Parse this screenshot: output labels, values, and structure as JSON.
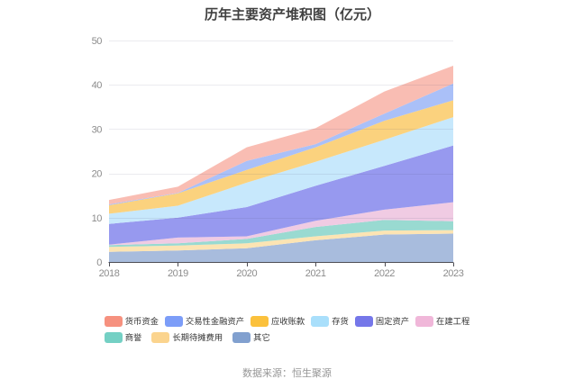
{
  "title": "历年主要资产堆积图（亿元）",
  "source_note": "数据来源：恒生聚源",
  "chart_data": {
    "type": "area",
    "stacked": true,
    "title": "历年主要资产堆积图（亿元）",
    "x": [
      "2018",
      "2019",
      "2020",
      "2021",
      "2022",
      "2023"
    ],
    "xlabel": "",
    "ylabel": "",
    "ylim": [
      0,
      50
    ],
    "y_ticks": [
      0,
      10,
      20,
      30,
      40,
      50
    ],
    "grid": true,
    "legend_position": "bottom",
    "stack_note": "series listed top-to-bottom of stack; drawn bottom-up in reverse order",
    "series": [
      {
        "name": "货币资金",
        "color": "#F6917F",
        "area_color": "#F9BDB3",
        "values": [
          1.0,
          1.4,
          3.1,
          3.6,
          5.0,
          4.0
        ]
      },
      {
        "name": "交易性金融资产",
        "color": "#7C9DF8",
        "area_color": "#AAC0F8",
        "values": [
          0.2,
          0.1,
          2.0,
          0.7,
          1.6,
          3.8
        ]
      },
      {
        "name": "应收账款",
        "color": "#FBC13C",
        "area_color": "#FBD27E",
        "values": [
          1.9,
          2.8,
          2.9,
          3.3,
          4.3,
          3.8
        ]
      },
      {
        "name": "存货",
        "color": "#A9DFFB",
        "area_color": "#C7E8FC",
        "values": [
          2.3,
          2.7,
          5.5,
          5.4,
          5.9,
          6.4
        ]
      },
      {
        "name": "固定资产",
        "color": "#7577E9",
        "area_color": "#9799EF",
        "values": [
          4.7,
          4.5,
          6.6,
          7.9,
          9.9,
          12.8
        ]
      },
      {
        "name": "在建工程",
        "color": "#F0B7D9",
        "area_color": "#F0CBE3",
        "values": [
          0.1,
          1.3,
          0.6,
          1.4,
          2.3,
          4.3
        ]
      },
      {
        "name": "商誉",
        "color": "#74D0C4",
        "area_color": "#99DAD1",
        "values": [
          0.4,
          0.5,
          1.0,
          2.1,
          2.4,
          2.0
        ]
      },
      {
        "name": "长期待摊费用",
        "color": "#FBD48E",
        "area_color": "#FCE4B3",
        "values": [
          1.1,
          1.1,
          1.1,
          0.9,
          0.9,
          0.8
        ]
      },
      {
        "name": "其它",
        "color": "#81A0CF",
        "area_color": "#A8BCDD",
        "values": [
          2.3,
          2.6,
          3.1,
          4.9,
          6.2,
          6.4
        ]
      }
    ],
    "colors": {
      "axis_line": "#4d4d55",
      "grid_line_over": "rgba(70,75,110,0.11)",
      "tick_label": "#8c8c8c",
      "background": "#ffffff"
    }
  }
}
